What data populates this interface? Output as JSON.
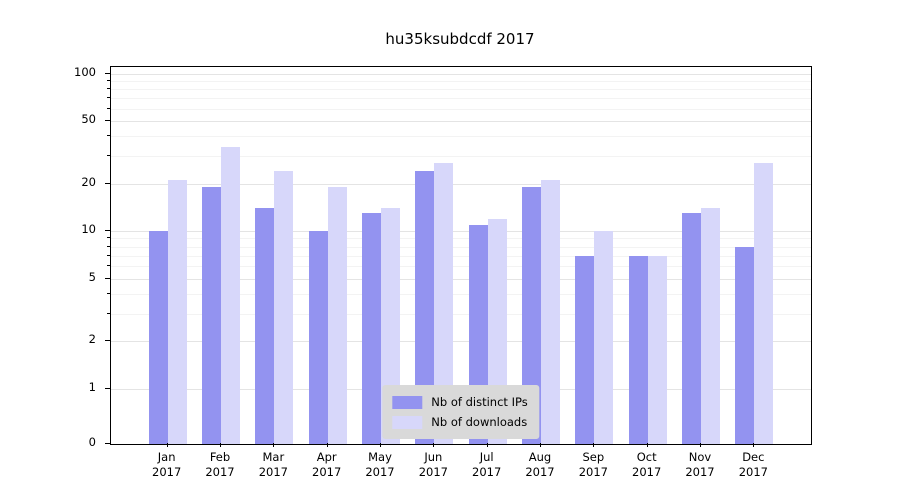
{
  "chart_data": {
    "type": "bar",
    "title": "hu35ksubdcdf 2017",
    "categories": [
      "Jan",
      "Feb",
      "Mar",
      "Apr",
      "May",
      "Jun",
      "Jul",
      "Aug",
      "Sep",
      "Oct",
      "Nov",
      "Dec"
    ],
    "year": "2017",
    "series": [
      {
        "name": "Nb of distinct IPs",
        "color": "#9393f0",
        "values": [
          10,
          19,
          14,
          10,
          13,
          24,
          11,
          19,
          7,
          7,
          13,
          8
        ]
      },
      {
        "name": "Nb of downloads",
        "color": "#d7d7fa",
        "values": [
          21,
          34,
          24,
          19,
          14,
          27,
          12,
          21,
          10,
          7,
          14,
          27
        ]
      }
    ],
    "yscale": "symlog",
    "yticks": [
      0,
      1,
      2,
      5,
      10,
      20,
      50,
      100
    ],
    "minor_yticks": [
      3,
      4,
      6,
      7,
      8,
      9,
      30,
      40,
      60,
      70,
      80,
      90
    ],
    "ylim": [
      0,
      110
    ],
    "grid": "horizontal",
    "legend_position": "lower center",
    "axis_color": "#000000",
    "background_color": "#ffffff"
  }
}
